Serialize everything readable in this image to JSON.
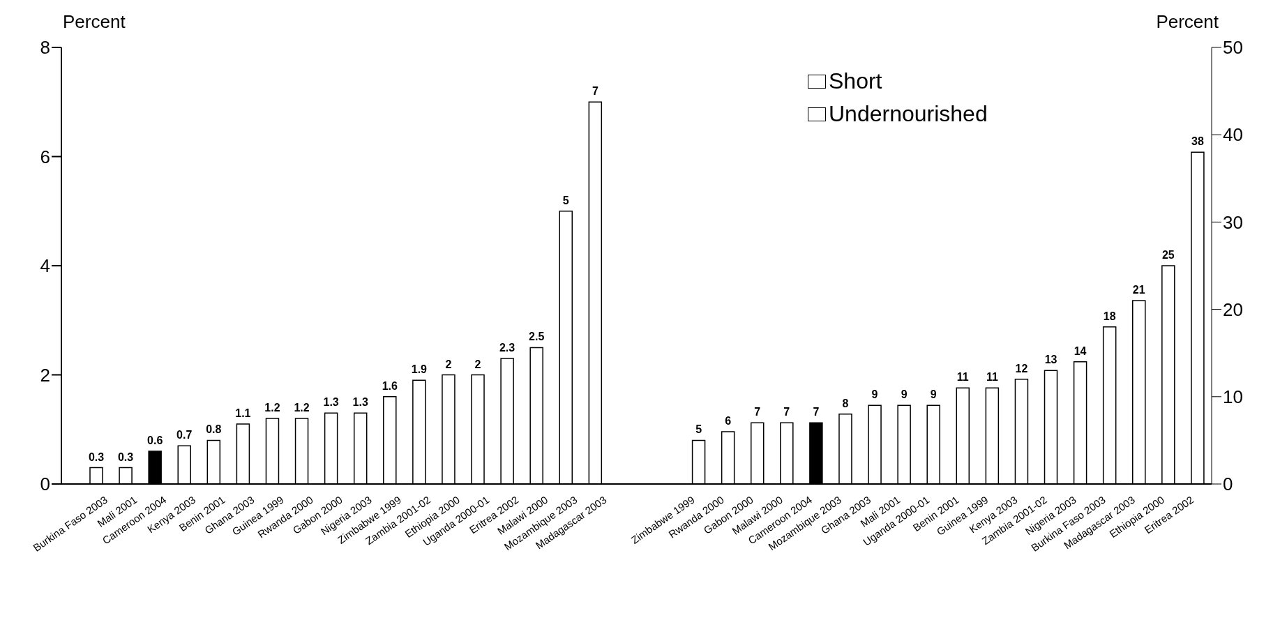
{
  "chart_data": {
    "type": "bar",
    "ylabel": "Percent",
    "y2label": "Percent",
    "categories": [
      "Burkina Faso 2003",
      "Mali 2001",
      "Cameroon 2004",
      "Kenya 2003",
      "Benin 2001",
      "Ghana 2003",
      "Guinea 1999",
      "Rwanda 2000",
      "Gabon 2000",
      "Nigeria 2003",
      "Zimbabwe 1999",
      "Zambia 2001-02",
      "Ethiopia 2000",
      "Uganda 2000-01",
      "Eritrea 2002",
      "Malawi 2000",
      "Mozambique 2003",
      "Madagascar 2003",
      null,
      null,
      "Zimbabwe 1999",
      "Rwanda 2000",
      "Gabon 2000",
      "Malawi 2000",
      "Cameroon 2004",
      "Mozambique 2003",
      "Ghana 2003",
      "Mali 2001",
      "Uganda 2000-01",
      "Benin 2001",
      "Guinea 1999",
      "Kenya 2003",
      "Zambia 2001-02",
      "Nigeria 2003",
      "Burkina Faso 2003",
      "Madagascar 2003",
      "Ethiopia 2000",
      "Eritrea 2002"
    ],
    "series": [
      {
        "name": "Short",
        "color": "#ffffff",
        "colors": [
          "#ffffff",
          "#ffffff",
          "#000000",
          "#ffffff",
          "#ffffff",
          "#ffffff",
          "#ffffff",
          "#ffffff",
          "#ffffff",
          "#ffffff",
          "#ffffff",
          "#ffffff",
          "#ffffff",
          "#ffffff",
          "#ffffff",
          "#ffffff",
          "#ffffff",
          "#ffffff",
          null,
          null,
          null,
          null,
          null,
          null,
          null,
          null,
          null,
          null,
          null,
          null,
          null,
          null,
          null,
          null,
          null,
          null,
          null,
          null
        ],
        "values": [
          0.3,
          0.3,
          0.6,
          0.7,
          0.8,
          1.1,
          1.2,
          1.2,
          1.3,
          1.3,
          1.6,
          1.9,
          2,
          2,
          2.3,
          2.5,
          5,
          7,
          null,
          null,
          null,
          null,
          null,
          null,
          null,
          null,
          null,
          null,
          null,
          null,
          null,
          null,
          null,
          null,
          null,
          null,
          null,
          null
        ]
      },
      {
        "name": "Undernourished",
        "color": "#ffffff",
        "axis": "y2",
        "colors": [
          null,
          null,
          null,
          null,
          null,
          null,
          null,
          null,
          null,
          null,
          null,
          null,
          null,
          null,
          null,
          null,
          null,
          null,
          null,
          null,
          "#ffffff",
          "#ffffff",
          "#ffffff",
          "#ffffff",
          "#000000",
          "#ffffff",
          "#ffffff",
          "#ffffff",
          "#ffffff",
          "#ffffff",
          "#ffffff",
          "#ffffff",
          "#ffffff",
          "#ffffff",
          "#ffffff",
          "#ffffff",
          "#ffffff",
          "#ffffff"
        ],
        "values": [
          null,
          null,
          null,
          null,
          null,
          null,
          null,
          null,
          null,
          null,
          null,
          null,
          null,
          null,
          null,
          null,
          null,
          null,
          null,
          null,
          5,
          6,
          7,
          7,
          7,
          8,
          9,
          9,
          9,
          11,
          11,
          12,
          13,
          14,
          18,
          21,
          25,
          38
        ]
      }
    ],
    "ylim": [
      0,
      8
    ],
    "yticks": [
      0,
      2,
      4,
      6,
      8
    ],
    "y2lim": [
      0,
      50
    ],
    "y2ticks": [
      0,
      10,
      20,
      30,
      40,
      50
    ],
    "data_labels": true,
    "legend": "top right"
  }
}
